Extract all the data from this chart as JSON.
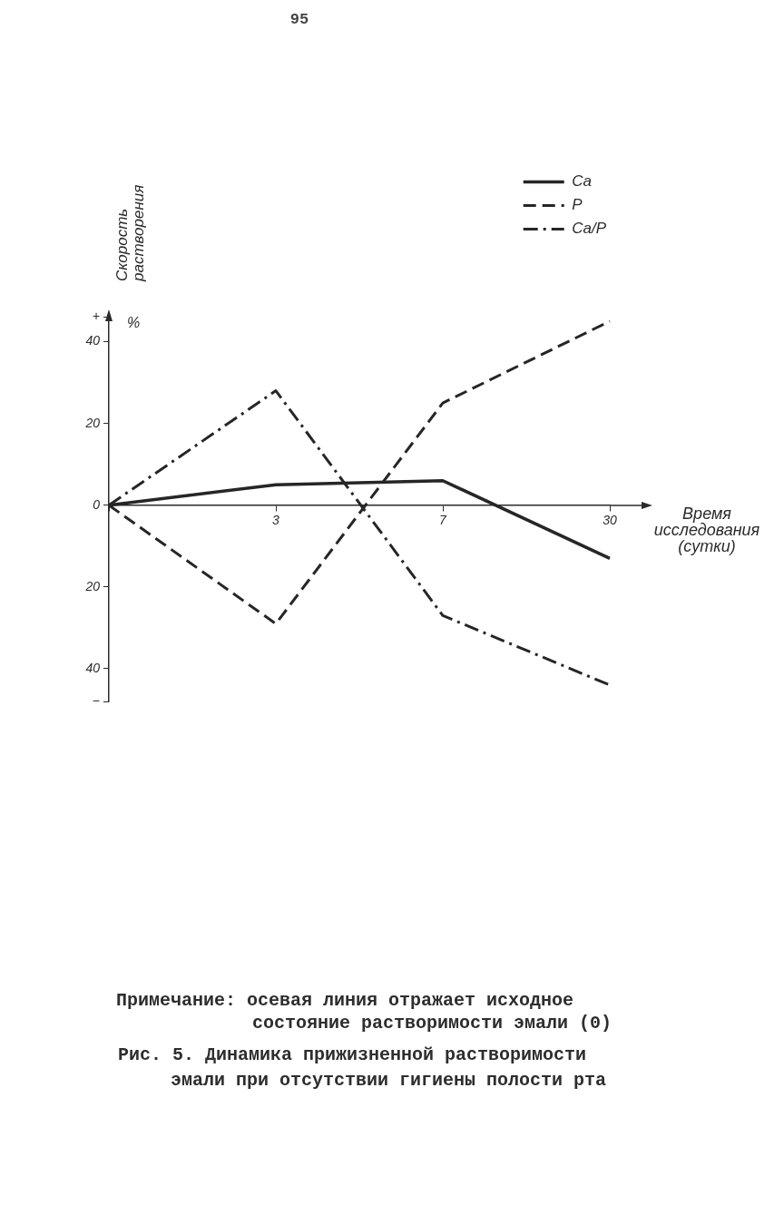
{
  "chart_data": {
    "type": "line",
    "title": "Рис. 5. Динамика прижизненной растворимости эмали при отсутствии гигиены полости рта",
    "xlabel": "Время исследования (сутки)",
    "ylabel": "Скорость растворения",
    "annotations": [
      "95",
      "%",
      "Примечание: осевая линия отражает исходное состояние растворимости эмали (0)"
    ],
    "categories": [
      null,
      "3",
      "7",
      "30"
    ],
    "series": [
      {
        "name": "Ca",
        "color": "#262626",
        "values": [
          0,
          5,
          6,
          -13
        ],
        "line_style": "solid"
      },
      {
        "name": "P",
        "color": "#262626",
        "values": [
          0,
          -29,
          25,
          45
        ],
        "line_style": "dashed"
      },
      {
        "name": "Ca/P",
        "color": "#262626",
        "values": [
          0,
          28,
          -27,
          -44
        ],
        "line_style": "dashdot"
      }
    ],
    "ylim": [
      -48,
      47
    ],
    "yticks": [
      {
        "value": 46,
        "label": "+"
      },
      40,
      20,
      0,
      {
        "value": -20,
        "label": "20"
      },
      {
        "value": -40,
        "label": "40"
      },
      {
        "value": -48,
        "label": "−"
      }
    ],
    "grid": false,
    "legend": "top right",
    "marker": "none"
  }
}
